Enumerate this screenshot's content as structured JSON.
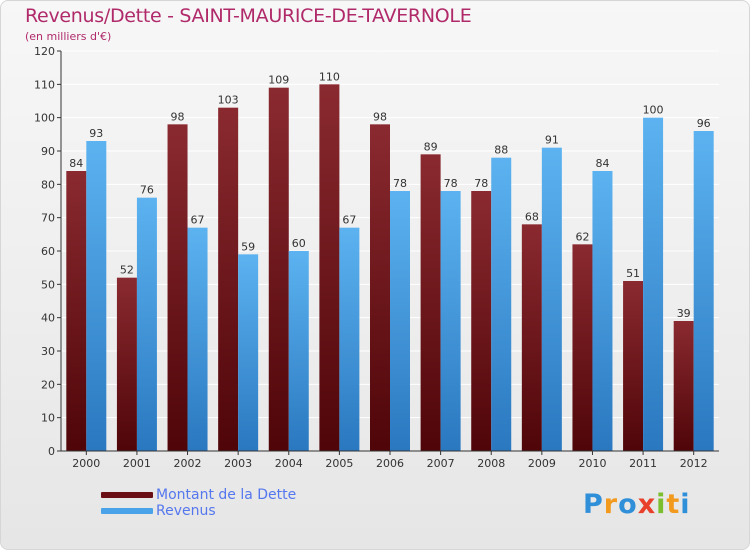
{
  "title": "Revenus/Dette - SAINT-MAURICE-DE-TAVERNOLE",
  "subtitle": "(en milliers d'€)",
  "logo": {
    "letters": [
      "P",
      "r",
      "o",
      "x",
      "i",
      "t",
      "i"
    ],
    "colors": [
      "#2f8fd8",
      "#f29a1e",
      "#2f8fd8",
      "#e8402a",
      "#7cbf2e",
      "#f29a1e",
      "#2f8fd8"
    ]
  },
  "chart_data": {
    "type": "bar",
    "categories": [
      "2000",
      "2001",
      "2002",
      "2003",
      "2004",
      "2005",
      "2006",
      "2007",
      "2008",
      "2009",
      "2010",
      "2011",
      "2012"
    ],
    "series": [
      {
        "name": "Montant de la Dette",
        "color": "#7a1d22",
        "values": [
          84,
          52,
          98,
          103,
          109,
          110,
          98,
          89,
          78,
          68,
          62,
          51,
          39
        ]
      },
      {
        "name": "Revenus",
        "color": "#4aa3e8",
        "values": [
          93,
          76,
          67,
          59,
          60,
          67,
          78,
          78,
          88,
          91,
          84,
          100,
          96
        ]
      }
    ],
    "ylim": [
      0,
      120
    ],
    "yticks": [
      0,
      10,
      20,
      30,
      40,
      50,
      60,
      70,
      80,
      90,
      100,
      110,
      120
    ],
    "grid": true,
    "legend": "bottom-left"
  }
}
